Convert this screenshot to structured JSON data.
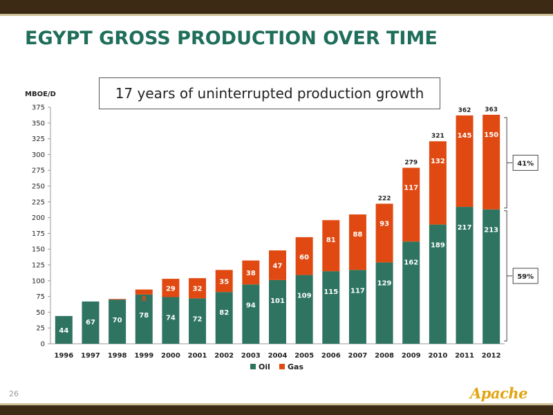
{
  "slide": {
    "title": "EGYPT GROSS PRODUCTION OVER TIME",
    "callout": "17 years of uninterrupted production growth",
    "page_number": "26",
    "logo_text": "Apache"
  },
  "colors": {
    "oil": "#2e7460",
    "gas": "#e04a12",
    "title": "#1f6e5a",
    "frame": "#3d2a14"
  },
  "chart_data": {
    "type": "bar",
    "stacked": true,
    "title": "",
    "xlabel": "",
    "ylabel": "MBOE/D",
    "ylim": [
      0,
      375
    ],
    "yticks": [
      0,
      25,
      50,
      75,
      100,
      125,
      150,
      175,
      200,
      225,
      250,
      275,
      300,
      325,
      350,
      375
    ],
    "categories": [
      "1996",
      "1997",
      "1998",
      "1999",
      "2000",
      "2001",
      "2002",
      "2003",
      "2004",
      "2005",
      "2006",
      "2007",
      "2008",
      "2009",
      "2010",
      "2011",
      "2012"
    ],
    "series": [
      {
        "name": "Oil",
        "values": [
          44,
          67,
          70,
          78,
          74,
          72,
          82,
          94,
          101,
          109,
          115,
          117,
          129,
          162,
          189,
          217,
          213
        ],
        "labels": [
          "44",
          "67",
          "70",
          "78",
          "74",
          "72",
          "82",
          "94",
          "101",
          "109",
          "115",
          "117",
          "129",
          "162",
          "189",
          "217",
          "213"
        ]
      },
      {
        "name": "Gas",
        "values": [
          0,
          0,
          1,
          8,
          29,
          32,
          35,
          38,
          47,
          60,
          81,
          88,
          93,
          117,
          132,
          145,
          150
        ],
        "labels": [
          "",
          "",
          "",
          "8",
          "29",
          "32",
          "35",
          "38",
          "47",
          "60",
          "81",
          "88",
          "93",
          "117",
          "132",
          "145",
          "150"
        ]
      }
    ],
    "totals": [
      "",
      "",
      "",
      "",
      "",
      "",
      "",
      "",
      "",
      "",
      "",
      "",
      "222",
      "279",
      "321",
      "362",
      "363"
    ],
    "legend": {
      "position": "bottom",
      "entries": [
        "Oil",
        "Gas"
      ]
    },
    "annotations": [
      {
        "text": "41%",
        "series": "Gas"
      },
      {
        "text": "59%",
        "series": "Oil"
      }
    ],
    "grid": false
  }
}
